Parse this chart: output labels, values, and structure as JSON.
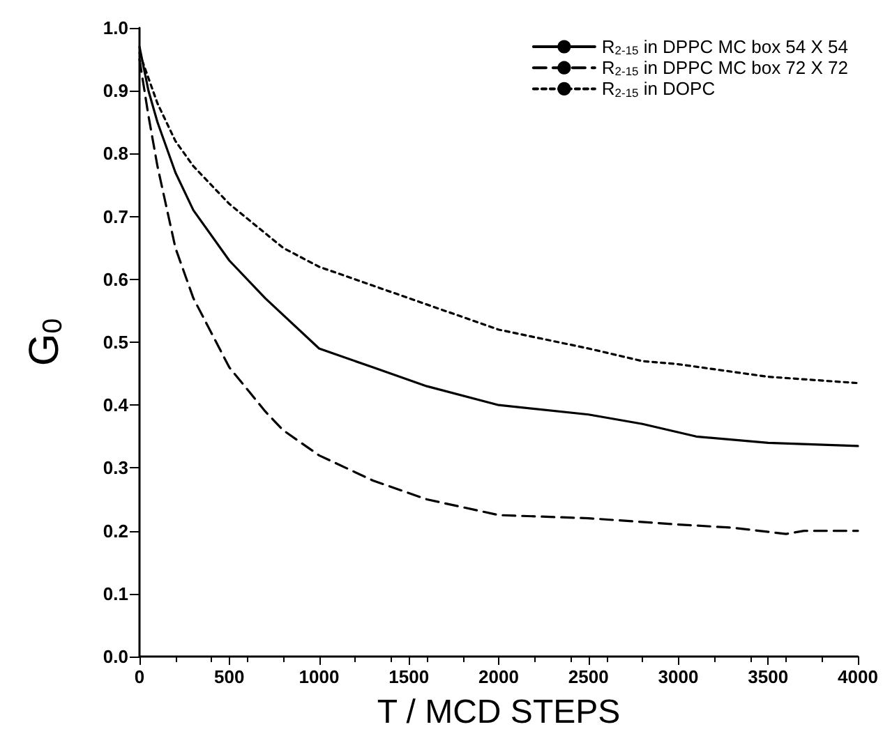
{
  "chart_data": {
    "type": "line",
    "xlabel": "T / MCD STEPS",
    "ylabel": "G$_{0}$",
    "xlim": [
      0,
      4000
    ],
    "ylim": [
      0,
      1
    ],
    "xticks": [
      0,
      500,
      1000,
      1500,
      2000,
      2500,
      3000,
      3500,
      4000
    ],
    "yticks": [
      {
        "value": 0,
        "label": "0.0"
      },
      0.1,
      0.2,
      0.3,
      0.4,
      0.5,
      0.6,
      0.7,
      0.8,
      0.9,
      {
        "value": 1,
        "label": "1.0"
      }
    ],
    "grid": false,
    "legend": "top right",
    "marker": "none",
    "x": [
      0,
      50,
      100,
      200,
      300,
      500,
      700,
      1000,
      1300,
      1600,
      2000,
      2500,
      2800,
      3100,
      3500,
      4000
    ],
    "series": [
      {
        "name": "R$_{2-15}$ in DPPC MC box 54 X 54",
        "color": "#000000",
        "line_style": "solid",
        "values": [
          0.97,
          0.9,
          0.85,
          0.77,
          0.71,
          0.63,
          0.57,
          0.49,
          0.46,
          0.43,
          0.4,
          0.385,
          0.37,
          0.35,
          0.34,
          0.335
        ]
      },
      {
        "name": "R$_{2-15}$ in DPPC MC box 72 X 72",
        "color": "#000000",
        "line_style": "dashed",
        "x": [
          0,
          50,
          100,
          200,
          300,
          500,
          700,
          800,
          1000,
          1300,
          1600,
          2000,
          2500,
          3000,
          3300,
          3600,
          3700,
          4000
        ],
        "values": [
          0.95,
          0.86,
          0.78,
          0.65,
          0.57,
          0.46,
          0.39,
          0.36,
          0.32,
          0.28,
          0.25,
          0.225,
          0.22,
          0.21,
          0.205,
          0.195,
          0.2,
          0.2
        ]
      },
      {
        "name": "R$_{2-15}$ in DOPC",
        "color": "#000000",
        "line_style": "dotted",
        "x": [
          0,
          100,
          200,
          300,
          500,
          800,
          1000,
          1300,
          1600,
          2000,
          2500,
          2800,
          3000,
          3500,
          4000
        ],
        "values": [
          0.96,
          0.88,
          0.82,
          0.78,
          0.72,
          0.65,
          0.62,
          0.59,
          0.56,
          0.52,
          0.49,
          0.47,
          0.465,
          0.445,
          0.435
        ]
      }
    ]
  }
}
